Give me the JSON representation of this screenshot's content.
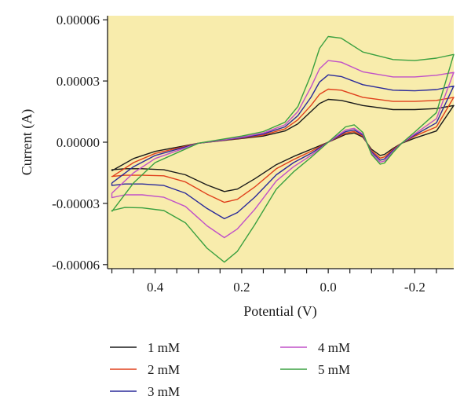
{
  "chart_data": {
    "type": "line",
    "xlabel": "Potential (V)",
    "ylabel": "Current (A)",
    "xlim": [
      0.51,
      -0.29
    ],
    "ylim": [
      -6.2e-05,
      6.2e-05
    ],
    "x_ticks": [
      0.4,
      0.2,
      0.0,
      -0.2
    ],
    "x_tick_labels": [
      "0.4",
      "0.2",
      "0.0",
      "-0.2"
    ],
    "y_ticks": [
      6e-05,
      3e-05,
      0.0,
      -3e-05,
      -6e-05
    ],
    "y_tick_labels": [
      "0.00006",
      "0.00003",
      "0.00000",
      "-0.00003",
      "-0.00006"
    ],
    "grid": false,
    "legend_position": "bottom",
    "series": [
      {
        "name": "1 mM",
        "color": "#1a1a1a",
        "forward": [
          [
            0.5,
            -1.4e-05
          ],
          [
            0.45,
            -8e-06
          ],
          [
            0.4,
            -4.5e-06
          ],
          [
            0.3,
            -5e-07
          ],
          [
            0.2,
            1.8e-06
          ],
          [
            0.15,
            3e-06
          ],
          [
            0.1,
            5.5e-06
          ],
          [
            0.07,
            9e-06
          ],
          [
            0.04,
            1.5e-05
          ],
          [
            0.02,
            1.9e-05
          ],
          [
            0.0,
            2.1e-05
          ],
          [
            -0.03,
            2.05e-05
          ],
          [
            -0.08,
            1.8e-05
          ],
          [
            -0.15,
            1.6e-05
          ],
          [
            -0.2,
            1.6e-05
          ],
          [
            -0.25,
            1.65e-05
          ],
          [
            -0.29,
            1.8e-05
          ]
        ],
        "reverse": [
          [
            -0.29,
            9e-06
          ],
          [
            -0.25,
            5.5e-06
          ],
          [
            -0.2,
            2e-06
          ],
          [
            -0.17,
            -5e-07
          ],
          [
            -0.15,
            -3e-06
          ],
          [
            -0.13,
            -6e-06
          ],
          [
            -0.12,
            -6.5e-06
          ],
          [
            -0.1,
            -3.5e-06
          ],
          [
            -0.08,
            2.5e-06
          ],
          [
            -0.06,
            4.5e-06
          ],
          [
            -0.04,
            3.8e-06
          ],
          [
            0.0,
            0.0
          ],
          [
            0.04,
            -3.5e-06
          ],
          [
            0.08,
            -7e-06
          ],
          [
            0.12,
            -1.1e-05
          ],
          [
            0.17,
            -1.8e-05
          ],
          [
            0.21,
            -2.3e-05
          ],
          [
            0.24,
            -2.42e-05
          ],
          [
            0.28,
            -2.1e-05
          ],
          [
            0.33,
            -1.6e-05
          ],
          [
            0.38,
            -1.35e-05
          ],
          [
            0.43,
            -1.3e-05
          ],
          [
            0.47,
            -1.3e-05
          ],
          [
            0.5,
            -1.35e-05
          ]
        ]
      },
      {
        "name": "2 mM",
        "color": "#e0401c",
        "forward": [
          [
            0.5,
            -1.7e-05
          ],
          [
            0.45,
            -1e-05
          ],
          [
            0.4,
            -5.5e-06
          ],
          [
            0.3,
            -5e-07
          ],
          [
            0.2,
            2e-06
          ],
          [
            0.15,
            3.5e-06
          ],
          [
            0.1,
            6.5e-06
          ],
          [
            0.07,
            1.1e-05
          ],
          [
            0.04,
            1.8e-05
          ],
          [
            0.02,
            2.35e-05
          ],
          [
            0.0,
            2.6e-05
          ],
          [
            -0.03,
            2.55e-05
          ],
          [
            -0.08,
            2.2e-05
          ],
          [
            -0.15,
            2e-05
          ],
          [
            -0.2,
            2e-05
          ],
          [
            -0.25,
            2.05e-05
          ],
          [
            -0.29,
            2.2e-05
          ]
        ],
        "reverse": [
          [
            -0.29,
            1.2e-05
          ],
          [
            -0.25,
            7.5e-06
          ],
          [
            -0.2,
            3e-06
          ],
          [
            -0.17,
            -5e-07
          ],
          [
            -0.15,
            -3.5e-06
          ],
          [
            -0.13,
            -7.2e-06
          ],
          [
            -0.12,
            -7.8e-06
          ],
          [
            -0.1,
            -4.2e-06
          ],
          [
            -0.08,
            3e-06
          ],
          [
            -0.06,
            5.2e-06
          ],
          [
            -0.04,
            4.5e-06
          ],
          [
            0.0,
            0.0
          ],
          [
            0.04,
            -4.5e-06
          ],
          [
            0.08,
            -8.5e-06
          ],
          [
            0.12,
            -1.3e-05
          ],
          [
            0.17,
            -2.2e-05
          ],
          [
            0.21,
            -2.8e-05
          ],
          [
            0.24,
            -2.95e-05
          ],
          [
            0.28,
            -2.55e-05
          ],
          [
            0.33,
            -1.95e-05
          ],
          [
            0.38,
            -1.65e-05
          ],
          [
            0.43,
            -1.62e-05
          ],
          [
            0.47,
            -1.62e-05
          ],
          [
            0.5,
            -1.68e-05
          ]
        ]
      },
      {
        "name": "3 mM",
        "color": "#2a2a9a",
        "forward": [
          [
            0.5,
            -2e-05
          ],
          [
            0.45,
            -1.2e-05
          ],
          [
            0.4,
            -6.5e-06
          ],
          [
            0.3,
            -5e-07
          ],
          [
            0.2,
            2.2e-06
          ],
          [
            0.15,
            4e-06
          ],
          [
            0.1,
            7.5e-06
          ],
          [
            0.07,
            1.3e-05
          ],
          [
            0.04,
            2.2e-05
          ],
          [
            0.02,
            2.95e-05
          ],
          [
            0.0,
            3.3e-05
          ],
          [
            -0.03,
            3.22e-05
          ],
          [
            -0.08,
            2.82e-05
          ],
          [
            -0.15,
            2.55e-05
          ],
          [
            -0.2,
            2.52e-05
          ],
          [
            -0.25,
            2.58e-05
          ],
          [
            -0.29,
            2.75e-05
          ]
        ],
        "reverse": [
          [
            -0.29,
            1.5e-05
          ],
          [
            -0.25,
            9.5e-06
          ],
          [
            -0.2,
            3.5e-06
          ],
          [
            -0.17,
            -5e-07
          ],
          [
            -0.15,
            -4e-06
          ],
          [
            -0.13,
            -8.2e-06
          ],
          [
            -0.12,
            -8.8e-06
          ],
          [
            -0.1,
            -4.8e-06
          ],
          [
            -0.08,
            3.5e-06
          ],
          [
            -0.06,
            6e-06
          ],
          [
            -0.04,
            5.2e-06
          ],
          [
            0.0,
            0.0
          ],
          [
            0.04,
            -5.5e-06
          ],
          [
            0.08,
            -1e-05
          ],
          [
            0.12,
            -1.6e-05
          ],
          [
            0.17,
            -2.7e-05
          ],
          [
            0.21,
            -3.45e-05
          ],
          [
            0.24,
            -3.75e-05
          ],
          [
            0.28,
            -3.25e-05
          ],
          [
            0.33,
            -2.5e-05
          ],
          [
            0.38,
            -2.12e-05
          ],
          [
            0.43,
            -2.05e-05
          ],
          [
            0.47,
            -2.05e-05
          ],
          [
            0.5,
            -2.12e-05
          ]
        ]
      },
      {
        "name": "4 mM",
        "color": "#c050c8",
        "forward": [
          [
            0.5,
            -2.5e-05
          ],
          [
            0.45,
            -1.5e-05
          ],
          [
            0.4,
            -8e-06
          ],
          [
            0.3,
            -5e-07
          ],
          [
            0.2,
            2.5e-06
          ],
          [
            0.15,
            4.5e-06
          ],
          [
            0.1,
            8.5e-06
          ],
          [
            0.07,
            1.5e-05
          ],
          [
            0.04,
            2.7e-05
          ],
          [
            0.02,
            3.6e-05
          ],
          [
            0.0,
            4e-05
          ],
          [
            -0.03,
            3.92e-05
          ],
          [
            -0.08,
            3.45e-05
          ],
          [
            -0.15,
            3.2e-05
          ],
          [
            -0.2,
            3.2e-05
          ],
          [
            -0.25,
            3.28e-05
          ],
          [
            -0.29,
            3.42e-05
          ]
        ],
        "reverse": [
          [
            -0.29,
            1.85e-05
          ],
          [
            -0.25,
            1.15e-05
          ],
          [
            -0.2,
            4e-06
          ],
          [
            -0.17,
            -5e-07
          ],
          [
            -0.15,
            -4.5e-06
          ],
          [
            -0.13,
            -9.2e-06
          ],
          [
            -0.12,
            -9.8e-06
          ],
          [
            -0.1,
            -5.4e-06
          ],
          [
            -0.08,
            4e-06
          ],
          [
            -0.06,
            6.8e-06
          ],
          [
            -0.04,
            6e-06
          ],
          [
            0.0,
            0.0
          ],
          [
            0.04,
            -6.5e-06
          ],
          [
            0.08,
            -1.2e-05
          ],
          [
            0.12,
            -1.9e-05
          ],
          [
            0.17,
            -3.3e-05
          ],
          [
            0.21,
            -4.25e-05
          ],
          [
            0.24,
            -4.68e-05
          ],
          [
            0.28,
            -4.1e-05
          ],
          [
            0.33,
            -3.15e-05
          ],
          [
            0.38,
            -2.7e-05
          ],
          [
            0.43,
            -2.58e-05
          ],
          [
            0.47,
            -2.58e-05
          ],
          [
            0.5,
            -2.72e-05
          ]
        ]
      },
      {
        "name": "5 mM",
        "color": "#3aa040",
        "forward": [
          [
            0.5,
            -3.4e-05
          ],
          [
            0.45,
            -2e-05
          ],
          [
            0.4,
            -1e-05
          ],
          [
            0.3,
            -5e-07
          ],
          [
            0.2,
            3e-06
          ],
          [
            0.15,
            5.2e-06
          ],
          [
            0.1,
            9.8e-06
          ],
          [
            0.07,
            1.75e-05
          ],
          [
            0.04,
            3.3e-05
          ],
          [
            0.02,
            4.6e-05
          ],
          [
            0.0,
            5.18e-05
          ],
          [
            -0.03,
            5.1e-05
          ],
          [
            -0.08,
            4.42e-05
          ],
          [
            -0.15,
            4.05e-05
          ],
          [
            -0.2,
            4e-05
          ],
          [
            -0.25,
            4.12e-05
          ],
          [
            -0.29,
            4.3e-05
          ]
        ],
        "reverse": [
          [
            -0.29,
            2.3e-05
          ],
          [
            -0.25,
            1.45e-05
          ],
          [
            -0.2,
            5e-06
          ],
          [
            -0.17,
            -5e-07
          ],
          [
            -0.15,
            -5e-06
          ],
          [
            -0.13,
            -1.02e-05
          ],
          [
            -0.12,
            -1.08e-05
          ],
          [
            -0.1,
            -6e-06
          ],
          [
            -0.08,
            4.8e-06
          ],
          [
            -0.06,
            8.5e-06
          ],
          [
            -0.04,
            7.5e-06
          ],
          [
            0.0,
            0.0
          ],
          [
            0.04,
            -7.5e-06
          ],
          [
            0.08,
            -1.45e-05
          ],
          [
            0.12,
            -2.3e-05
          ],
          [
            0.17,
            -4.05e-05
          ],
          [
            0.21,
            -5.35e-05
          ],
          [
            0.24,
            -5.88e-05
          ],
          [
            0.28,
            -5.2e-05
          ],
          [
            0.33,
            -3.95e-05
          ],
          [
            0.38,
            -3.35e-05
          ],
          [
            0.43,
            -3.22e-05
          ],
          [
            0.47,
            -3.2e-05
          ],
          [
            0.5,
            -3.35e-05
          ]
        ]
      }
    ]
  }
}
